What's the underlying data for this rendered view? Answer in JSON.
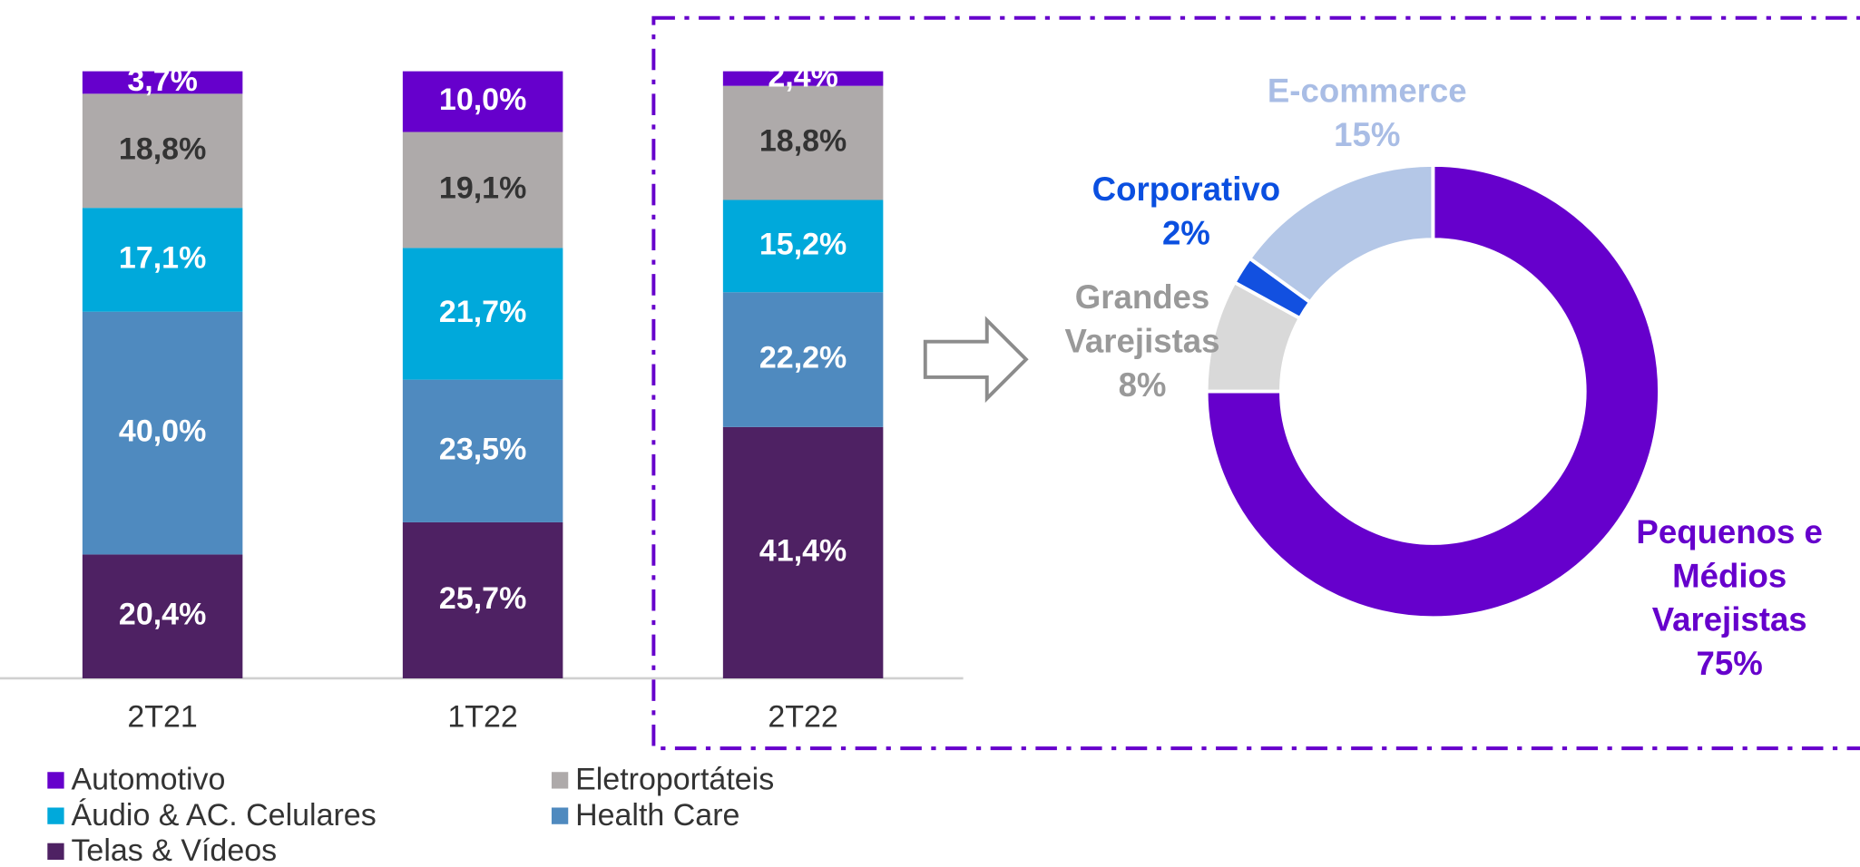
{
  "chart_data": [
    {
      "type": "stacked_bar",
      "categories": [
        "2T21",
        "1T22",
        "2T22"
      ],
      "series": [
        {
          "name": "Automotivo",
          "color": "#6600CC",
          "values": [
            3.7,
            10.0,
            2.4
          ],
          "value_labels": [
            "3,7%",
            "10,0%",
            "2,4%"
          ]
        },
        {
          "name": "Eletroportáteis",
          "color": "#AEAAAA",
          "values": [
            18.8,
            19.1,
            18.8
          ],
          "value_labels": [
            "18,8%",
            "19,1%",
            "18,8%"
          ]
        },
        {
          "name": "Áudio & AC. Celulares",
          "color": "#00A9DB",
          "values": [
            17.1,
            21.7,
            15.2
          ],
          "value_labels": [
            "17,1%",
            "21,7%",
            "15,2%"
          ]
        },
        {
          "name": "Health Care",
          "color": "#4F8ABF",
          "values": [
            40.0,
            23.5,
            22.2
          ],
          "value_labels": [
            "40,0%",
            "23,5%",
            "22,2%"
          ]
        },
        {
          "name": "Telas & Vídeos",
          "color": "#4E2163",
          "values": [
            20.4,
            25.7,
            41.4
          ],
          "value_labels": [
            "20,4%",
            "25,7%",
            "41,4%"
          ]
        }
      ]
    },
    {
      "type": "donut",
      "categories": [
        "Pequenos e Médios Varejistas",
        "Grandes Varejistas",
        "Corporativo",
        "E-commerce"
      ],
      "values": [
        75,
        8,
        2,
        15
      ],
      "value_labels": [
        "75%",
        "8%",
        "2%",
        "15%"
      ],
      "colors": [
        "#6600CC",
        "#D9D9D9",
        "#1250E0",
        "#B4C7E7"
      ],
      "label_colors": [
        "#6600CC",
        "#999999",
        "#0A4FE0",
        "#A9BDE5"
      ]
    }
  ]
}
